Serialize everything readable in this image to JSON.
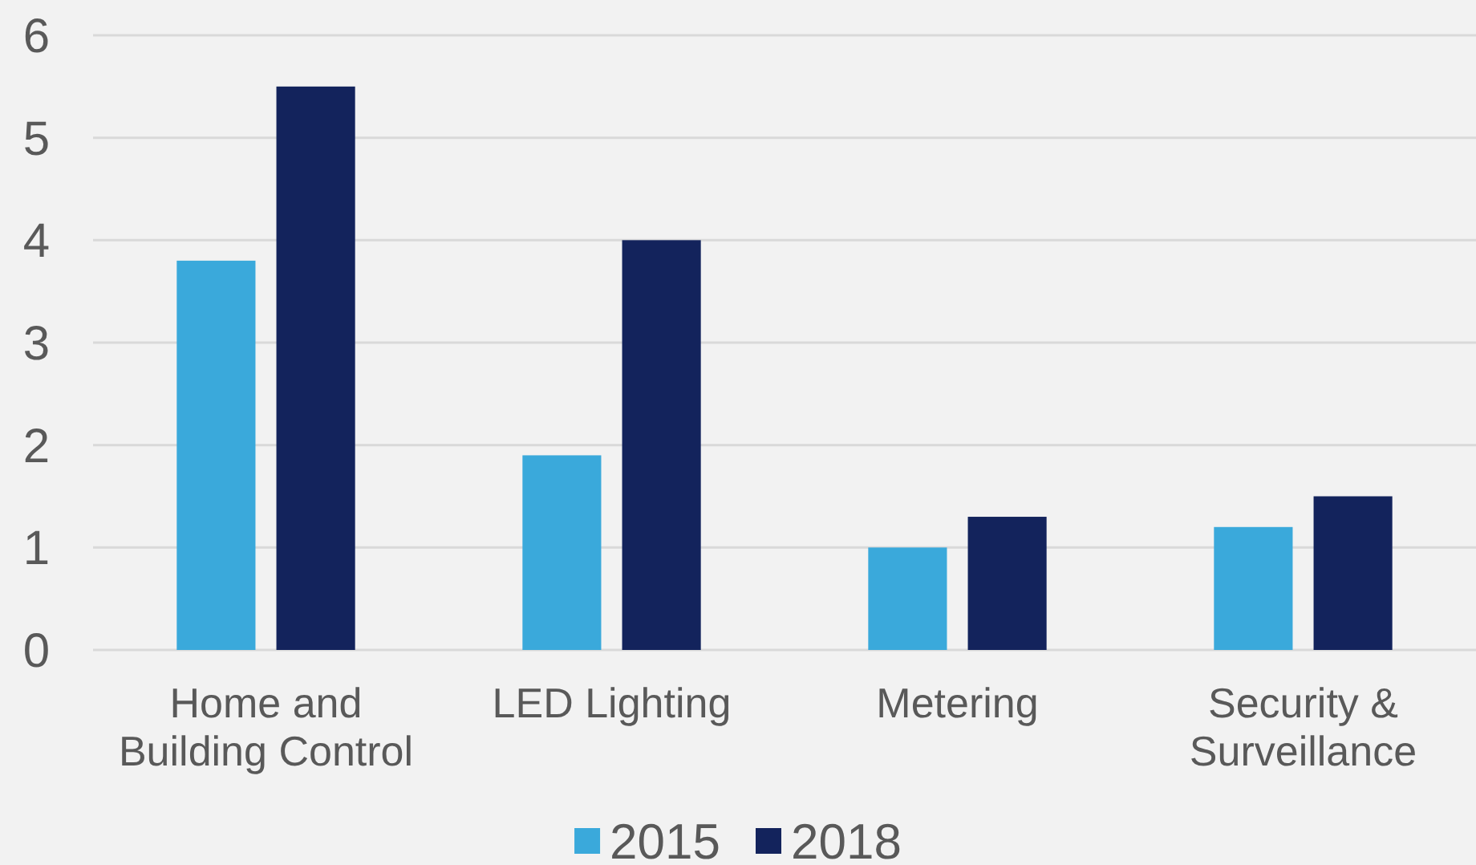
{
  "chart_data": {
    "type": "bar",
    "categories": [
      "Home and Building Control",
      "LED Lighting",
      "Metering",
      "Security & Surveillance"
    ],
    "series": [
      {
        "name": "2015",
        "color": "#3aa9db",
        "values": [
          3.8,
          1.9,
          1.0,
          1.2
        ]
      },
      {
        "name": "2018",
        "color": "#13235c",
        "values": [
          5.5,
          4.0,
          1.3,
          1.5
        ]
      }
    ],
    "ylim": [
      0,
      6
    ],
    "yticks": [
      0,
      1,
      2,
      3,
      4,
      5,
      6
    ],
    "grid": "y",
    "legend": "bottom"
  }
}
